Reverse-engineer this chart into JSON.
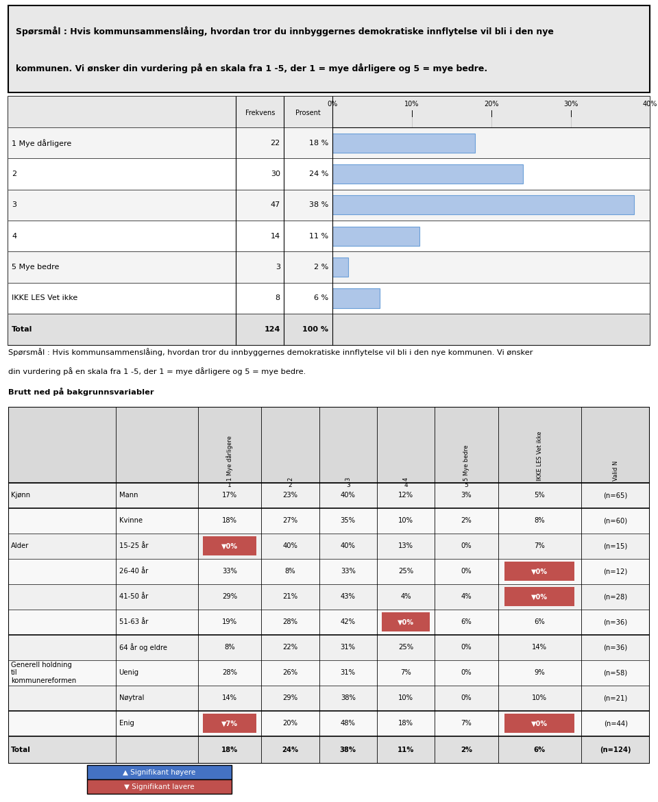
{
  "title1_line1": "Spørsmål : Hvis kommunsammenslåing, hvordan tror du innbyggernes demokratiske innflytelse vil bli i den nye",
  "title1_line2": "kommunen. Vi ønsker din vurdering på en skala fra 1 -5, der 1 = mye dårligere og 5 = mye bedre.",
  "bar_labels": [
    "1 Mye dårligere",
    "2",
    "3",
    "4",
    "5 Mye bedre",
    "IKKE LES Vet ikke",
    "Total"
  ],
  "frekvens": [
    22,
    30,
    47,
    14,
    3,
    8,
    124
  ],
  "prosent": [
    18,
    24,
    38,
    11,
    2,
    6,
    100
  ],
  "bar_color": "#aec6e8",
  "bar_edge_color": "#6a9fd8",
  "title2_line1": "Spørsmål : Hvis kommunsammenslåing, hvordan tror du innbyggernes demokratiske innflytelse vil bli i den nye kommunen. Vi ønsker",
  "title2_line2": "din vurdering på en skala fra 1 -5, der 1 = mye dårligere og 5 = mye bedre.",
  "title2_line3": "Brutt ned på bakgrunnsvariabler",
  "col_headers": [
    "1 Mye dårligere",
    "2",
    "3",
    "4",
    "5 Mye bedre",
    "IKKE LES Vet ikke",
    "Valid N"
  ],
  "col_numbers": [
    "1",
    "2",
    "3",
    "4",
    "5",
    "",
    ""
  ],
  "table_rows": [
    {
      "group": "Kjønn",
      "label": "Mann",
      "values": [
        "17%",
        "23%",
        "40%",
        "12%",
        "3%",
        "5%",
        "(n=65)"
      ],
      "flags": [
        0,
        0,
        0,
        0,
        0,
        0,
        0
      ]
    },
    {
      "group": "",
      "label": "Kvinne",
      "values": [
        "18%",
        "27%",
        "35%",
        "10%",
        "2%",
        "8%",
        "(n=60)"
      ],
      "flags": [
        0,
        0,
        0,
        0,
        0,
        0,
        0
      ]
    },
    {
      "group": "Alder",
      "label": "15-25 år",
      "values": [
        "0%",
        "40%",
        "40%",
        "13%",
        "0%",
        "7%",
        "(n=15)"
      ],
      "flags": [
        -1,
        0,
        0,
        0,
        0,
        0,
        0
      ]
    },
    {
      "group": "",
      "label": "26-40 år",
      "values": [
        "33%",
        "8%",
        "33%",
        "25%",
        "0%",
        "0%",
        "(n=12)"
      ],
      "flags": [
        0,
        0,
        0,
        0,
        0,
        -1,
        0
      ]
    },
    {
      "group": "",
      "label": "41-50 år",
      "values": [
        "29%",
        "21%",
        "43%",
        "4%",
        "4%",
        "0%",
        "(n=28)"
      ],
      "flags": [
        0,
        0,
        0,
        0,
        0,
        -1,
        0
      ]
    },
    {
      "group": "",
      "label": "51-63 år",
      "values": [
        "19%",
        "28%",
        "42%",
        "0%",
        "6%",
        "6%",
        "(n=36)"
      ],
      "flags": [
        0,
        0,
        0,
        -1,
        0,
        0,
        0
      ]
    },
    {
      "group": "",
      "label": "64 år og eldre",
      "values": [
        "8%",
        "22%",
        "31%",
        "25%",
        "0%",
        "14%",
        "(n=36)"
      ],
      "flags": [
        0,
        0,
        0,
        0,
        0,
        0,
        0
      ]
    },
    {
      "group": "Generell holdning\ntil\nkommunereformen",
      "label": "Uenig",
      "values": [
        "28%",
        "26%",
        "31%",
        "7%",
        "0%",
        "9%",
        "(n=58)"
      ],
      "flags": [
        0,
        0,
        0,
        0,
        0,
        0,
        0
      ]
    },
    {
      "group": "",
      "label": "Nøytral",
      "values": [
        "14%",
        "29%",
        "38%",
        "10%",
        "0%",
        "10%",
        "(n=21)"
      ],
      "flags": [
        0,
        0,
        0,
        0,
        0,
        0,
        0
      ]
    },
    {
      "group": "",
      "label": "Enig",
      "values": [
        "7%",
        "20%",
        "48%",
        "18%",
        "7%",
        "0%",
        "(n=44)"
      ],
      "flags": [
        -1,
        0,
        0,
        0,
        0,
        -1,
        0
      ]
    }
  ],
  "total_row": {
    "label": "Total",
    "values": [
      "18%",
      "24%",
      "38%",
      "11%",
      "2%",
      "6%",
      "(n=124)"
    ]
  },
  "group_separators": [
    2,
    7,
    10
  ],
  "legend_higher": "▲ Signifikant høyere",
  "legend_lower": "▼ Signifikant lavere",
  "sig_high_color": "#4472c4",
  "sig_low_color": "#c0504d"
}
